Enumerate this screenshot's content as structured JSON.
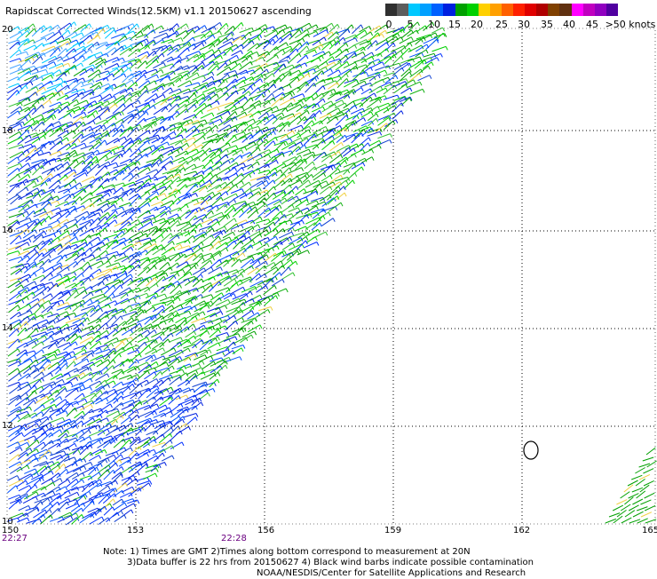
{
  "title": "Rapidscat Corrected Winds(12.5KM) v1.1 20150627 ascending",
  "colorbar": {
    "colors": [
      "#303030",
      "#5c5c5c",
      "#00c8ff",
      "#00a0ff",
      "#0060ff",
      "#0020e0",
      "#00a000",
      "#00d000",
      "#ffd000",
      "#ffa000",
      "#ff6000",
      "#ff2000",
      "#e00000",
      "#b00000",
      "#804000",
      "#603010",
      "#ff00ff",
      "#c000c0",
      "#9000c0",
      "#5000a0"
    ],
    "labels": [
      "0",
      "5",
      "10",
      "15",
      "20",
      "25",
      "30",
      "35",
      "40",
      "45",
      ">50 knots"
    ]
  },
  "map": {
    "lon_ticks": [
      "150",
      "153",
      "156",
      "159",
      "162",
      "165"
    ],
    "lat_ticks": [
      "20",
      "18",
      "16",
      "14",
      "12",
      "10"
    ],
    "times": [
      "22:27",
      "22:28"
    ]
  },
  "notes": [
    "Note: 1) Times are GMT 2)Times along bottom correspond to measurement at 20N",
    "3)Data buffer is 22 hrs from 20150627 4) Black wind barbs indicate possible contamination",
    "NOAA/NESDIS/Center for Satellite Applications and Research"
  ]
}
